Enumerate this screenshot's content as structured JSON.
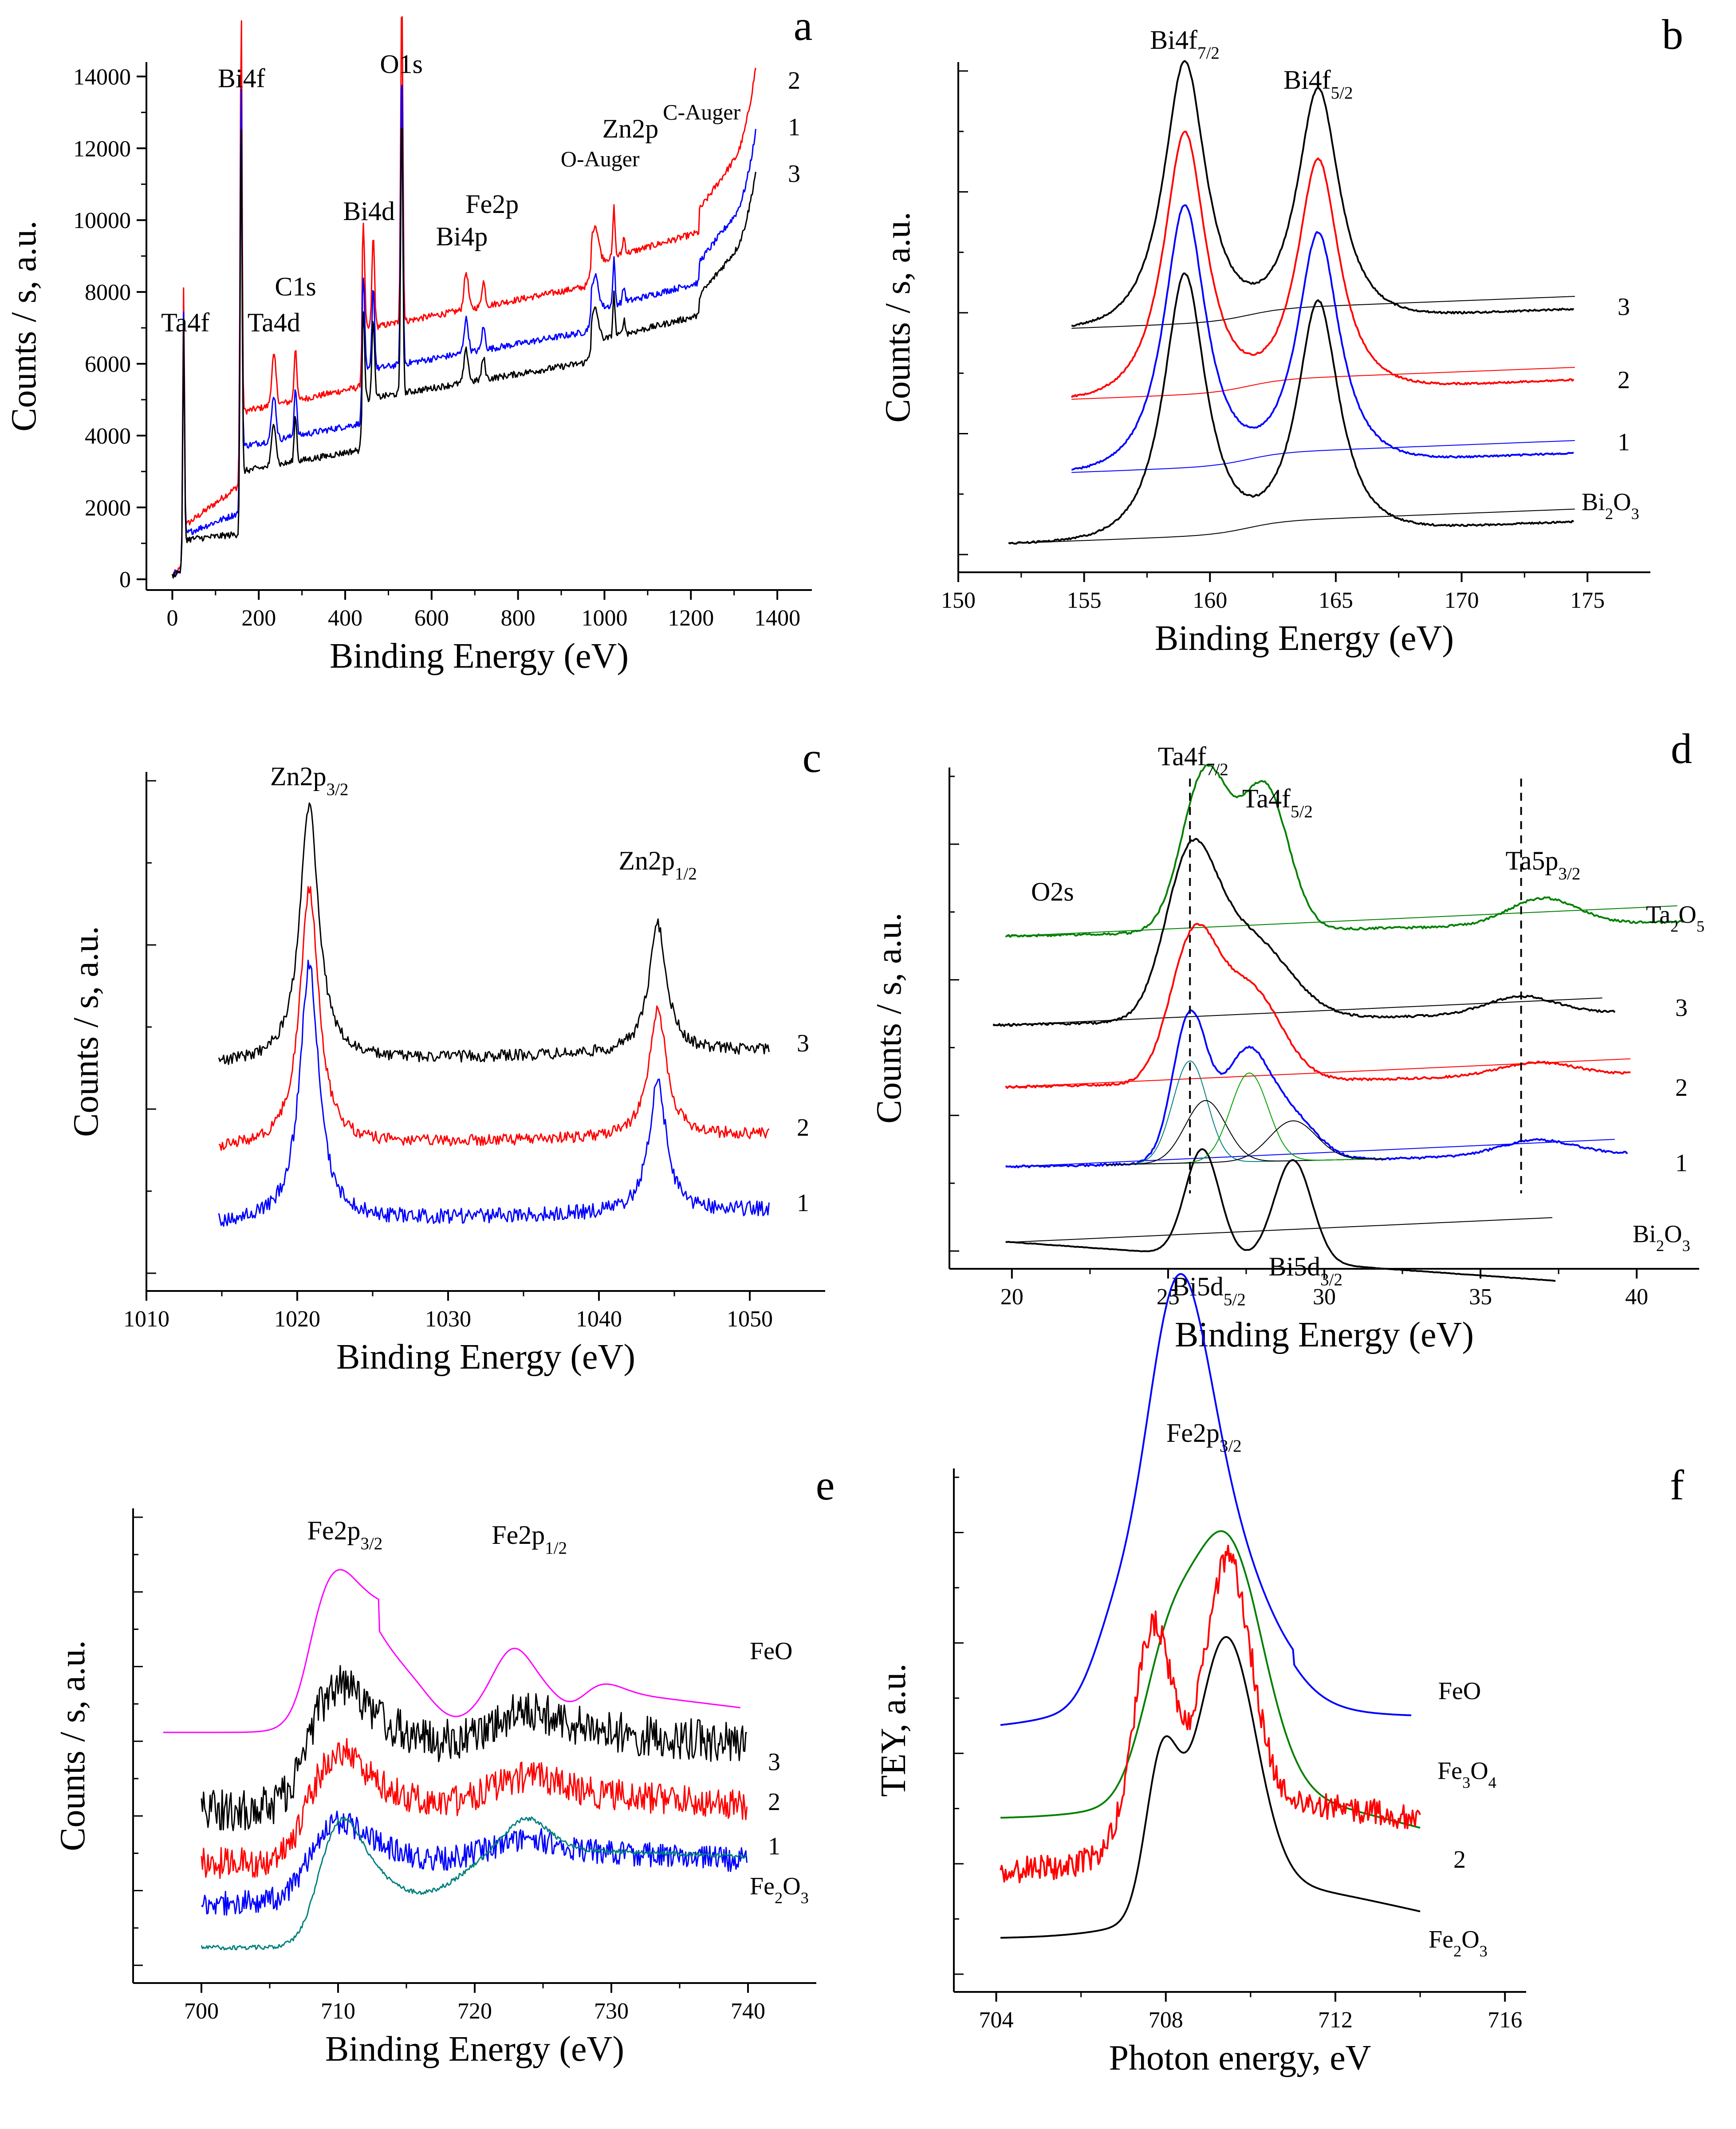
{
  "figure": {
    "panels": [
      "a",
      "b",
      "c",
      "d",
      "e",
      "f"
    ]
  },
  "chart_data": [
    {
      "panel": "a",
      "type": "line",
      "title": "",
      "xlabel": "Binding Energy (eV)",
      "ylabel": "Counts / s, a.u.",
      "xlim": [
        -60,
        1480
      ],
      "ylim": [
        -300,
        14400
      ],
      "xticks": [
        0,
        200,
        400,
        600,
        800,
        1000,
        1200,
        1400
      ],
      "yticks": [
        0,
        2000,
        4000,
        6000,
        8000,
        10000,
        12000,
        14000
      ],
      "grid": false,
      "peak_labels": [
        {
          "text": "Ta4f",
          "x": 30,
          "y": 6900
        },
        {
          "text": "Bi4f",
          "x": 160,
          "y": 13700
        },
        {
          "text": "Ta4d",
          "x": 235,
          "y": 6900
        },
        {
          "text": "C1s",
          "x": 285,
          "y": 7900
        },
        {
          "text": "Bi4d",
          "x": 455,
          "y": 10000
        },
        {
          "text": "O1s",
          "x": 530,
          "y": 14100
        },
        {
          "text": "Bi4p",
          "x": 670,
          "y": 9300
        },
        {
          "text": "Fe2p",
          "x": 740,
          "y": 10200
        },
        {
          "text": "O-Auger",
          "x": 990,
          "y": 11500
        },
        {
          "text": "Zn2p",
          "x": 1060,
          "y": 12300
        },
        {
          "text": "C-Auger",
          "x": 1225,
          "y": 12800
        }
      ],
      "series": [
        {
          "name": "2",
          "color": "#ff0000",
          "offset": 2200
        },
        {
          "name": "1",
          "color": "#0000ff",
          "offset": 1000
        },
        {
          "name": "3",
          "color": "#000000",
          "offset": 0
        }
      ],
      "series_labels": [
        "2",
        "1",
        "3"
      ]
    },
    {
      "panel": "b",
      "type": "line",
      "title": "",
      "xlabel": "Binding Energy (eV)",
      "ylabel": "Counts / s, a.u.",
      "xlim": [
        150,
        177.5
      ],
      "xticks": [
        150,
        155,
        160,
        165,
        170,
        175
      ],
      "peak_labels": [
        {
          "text": "Bi4f",
          "sub": "7/2",
          "x": 159.0
        },
        {
          "text": "Bi4f",
          "sub": "5/2",
          "x": 164.3
        }
      ],
      "peaks_eV": [
        159.0,
        164.3
      ],
      "series": [
        {
          "name": "3",
          "color": "#000000",
          "x_start": 154.5
        },
        {
          "name": "2",
          "color": "#ff0000",
          "x_start": 154.5
        },
        {
          "name": "1",
          "color": "#0000ff",
          "x_start": 154.5
        },
        {
          "name": "Bi2O3",
          "color": "#000000",
          "x_start": 152.0
        }
      ],
      "series_labels": [
        "3",
        "2",
        "1"
      ],
      "ref_label": {
        "main": "Bi",
        "sub1": "2",
        "mid": "O",
        "sub2": "3"
      }
    },
    {
      "panel": "c",
      "type": "line",
      "title": "",
      "xlabel": "Binding Energy (eV)",
      "ylabel": "Counts / s, a.u.",
      "xlim": [
        1010,
        1055
      ],
      "xticks": [
        1010,
        1020,
        1030,
        1040,
        1050
      ],
      "peak_labels": [
        {
          "text": "Zn2p",
          "sub": "3/2",
          "x": 1020.8
        },
        {
          "text": "Zn2p",
          "sub": "1/2",
          "x": 1043.9
        }
      ],
      "peaks_eV": [
        1020.8,
        1043.9
      ],
      "series": [
        {
          "name": "3",
          "color": "#000000"
        },
        {
          "name": "2",
          "color": "#ff0000"
        },
        {
          "name": "1",
          "color": "#0000ff"
        }
      ],
      "series_labels": [
        "3",
        "2",
        "1"
      ]
    },
    {
      "panel": "d",
      "type": "line",
      "title": "",
      "xlabel": "Binding Energy (eV)",
      "ylabel": "Counts / s, a.u.",
      "xlim": [
        18,
        42
      ],
      "xticks": [
        20,
        25,
        30,
        35,
        40
      ],
      "peak_labels": [
        {
          "text": "Ta4f",
          "sub": "7/2"
        },
        {
          "text": "Ta4f",
          "sub": "5/2"
        },
        {
          "text": "Ta5p",
          "sub": "3/2"
        },
        {
          "text": "O2s",
          "sub": ""
        },
        {
          "text": "Bi5d",
          "sub": "5/2"
        },
        {
          "text": "Bi5d",
          "sub": "3/2"
        }
      ],
      "dashed_lines_eV": [
        25.7,
        36.3
      ],
      "series": [
        {
          "name": "Ta2O5",
          "color": "#008000"
        },
        {
          "name": "3",
          "color": "#000000"
        },
        {
          "name": "2",
          "color": "#ff0000"
        },
        {
          "name": "1",
          "color": "#0000ff"
        },
        {
          "name": "Bi2O3",
          "color": "#000000"
        }
      ],
      "series_labels": [
        "3",
        "2",
        "1"
      ],
      "ref_labels": [
        {
          "main": "Ta",
          "sub1": "2",
          "mid": "O",
          "sub2": "5"
        },
        {
          "main": "Bi",
          "sub1": "2",
          "mid": "O",
          "sub2": "3"
        }
      ]
    },
    {
      "panel": "e",
      "type": "line",
      "title": "",
      "xlabel": "Binding Energy (eV)",
      "ylabel": "Counts / s, a.u.",
      "xlim": [
        695,
        745
      ],
      "xticks": [
        700,
        710,
        720,
        730,
        740
      ],
      "peak_labels": [
        {
          "text": "Fe2p",
          "sub": "3/2",
          "x": 710.5
        },
        {
          "text": "Fe2p",
          "sub": "1/2",
          "x": 724
        }
      ],
      "series": [
        {
          "name": "FeO",
          "color": "#ff00ff"
        },
        {
          "name": "3",
          "color": "#000000"
        },
        {
          "name": "2",
          "color": "#ff0000"
        },
        {
          "name": "1",
          "color": "#0000ff"
        },
        {
          "name": "Fe2O3",
          "color": "#008080"
        }
      ],
      "series_labels": [
        "FeO",
        "3",
        "2",
        "1"
      ],
      "ref_label": {
        "main": "Fe",
        "sub1": "2",
        "mid": "O",
        "sub2": "3"
      }
    },
    {
      "panel": "f",
      "type": "line",
      "title": "",
      "xlabel": "Photon energy, eV",
      "ylabel": "TEY, a.u.",
      "xlim": [
        703,
        716.5
      ],
      "xticks": [
        704,
        708,
        712,
        716
      ],
      "peak_labels": [
        {
          "text": "Fe2p",
          "sub": "3/2",
          "x": 709
        }
      ],
      "series": [
        {
          "name": "FeO",
          "color": "#0000ff"
        },
        {
          "name": "Fe3O4",
          "color": "#008000"
        },
        {
          "name": "2",
          "color": "#ff0000"
        },
        {
          "name": "Fe2O3",
          "color": "#000000"
        }
      ],
      "series_labels": [
        "FeO",
        "2"
      ],
      "ref_labels": [
        {
          "main": "Fe",
          "sub1": "3",
          "mid": "O",
          "sub2": "4"
        },
        {
          "main": "Fe",
          "sub1": "2",
          "mid": "O",
          "sub2": "3"
        }
      ]
    }
  ]
}
